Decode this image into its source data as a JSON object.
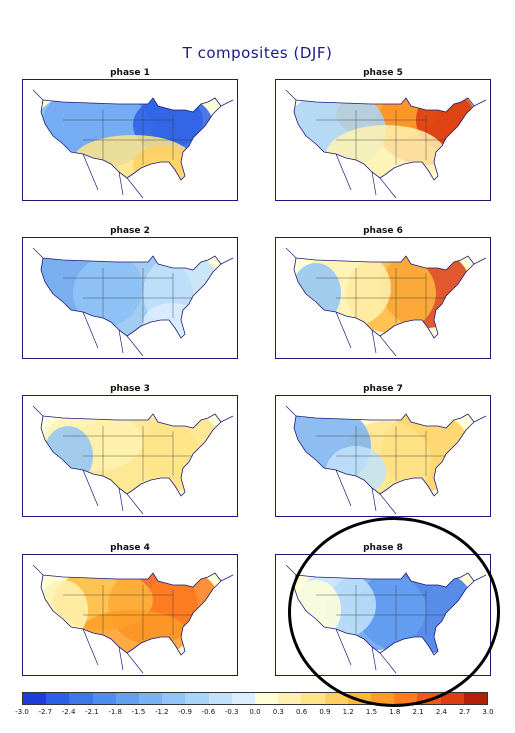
{
  "title": "T composites (DJF)",
  "panels": [
    {
      "label": "phase 1",
      "pattern": "cold_north_warm_south"
    },
    {
      "label": "phase 5",
      "pattern": "warm_east"
    },
    {
      "label": "phase 2",
      "pattern": "cold_west"
    },
    {
      "label": "phase 6",
      "pattern": "warm_northeast"
    },
    {
      "label": "phase 3",
      "pattern": "warm_central"
    },
    {
      "label": "phase 7",
      "pattern": "warm_east_cold_west"
    },
    {
      "label": "phase 4",
      "pattern": "warm_east_strong"
    },
    {
      "label": "phase 8",
      "pattern": "cold_east"
    }
  ],
  "colorbar": {
    "labels": [
      "-3.0",
      "-2.7",
      "-2.4",
      "-2.1",
      "-1.8",
      "-1.5",
      "-1.2",
      "-0.9",
      "-0.6",
      "-0.3",
      "0.0",
      "0.3",
      "0.6",
      "0.9",
      "1.2",
      "1.5",
      "1.8",
      "2.1",
      "2.4",
      "2.7",
      "3.0"
    ],
    "colors": [
      "#1e3cdc",
      "#2d5fe6",
      "#3c78ea",
      "#4f8ef0",
      "#64a0f2",
      "#7ab2f4",
      "#92c4f6",
      "#aad4f8",
      "#c2e2fa",
      "#dcefff",
      "#ffffd9",
      "#fff2b0",
      "#ffe488",
      "#ffd060",
      "#ffb83c",
      "#ff9c28",
      "#ff7d1e",
      "#f05a14",
      "#dc3c0f",
      "#b41e0a"
    ]
  },
  "annotation": "highlight-circle-phase-8"
}
